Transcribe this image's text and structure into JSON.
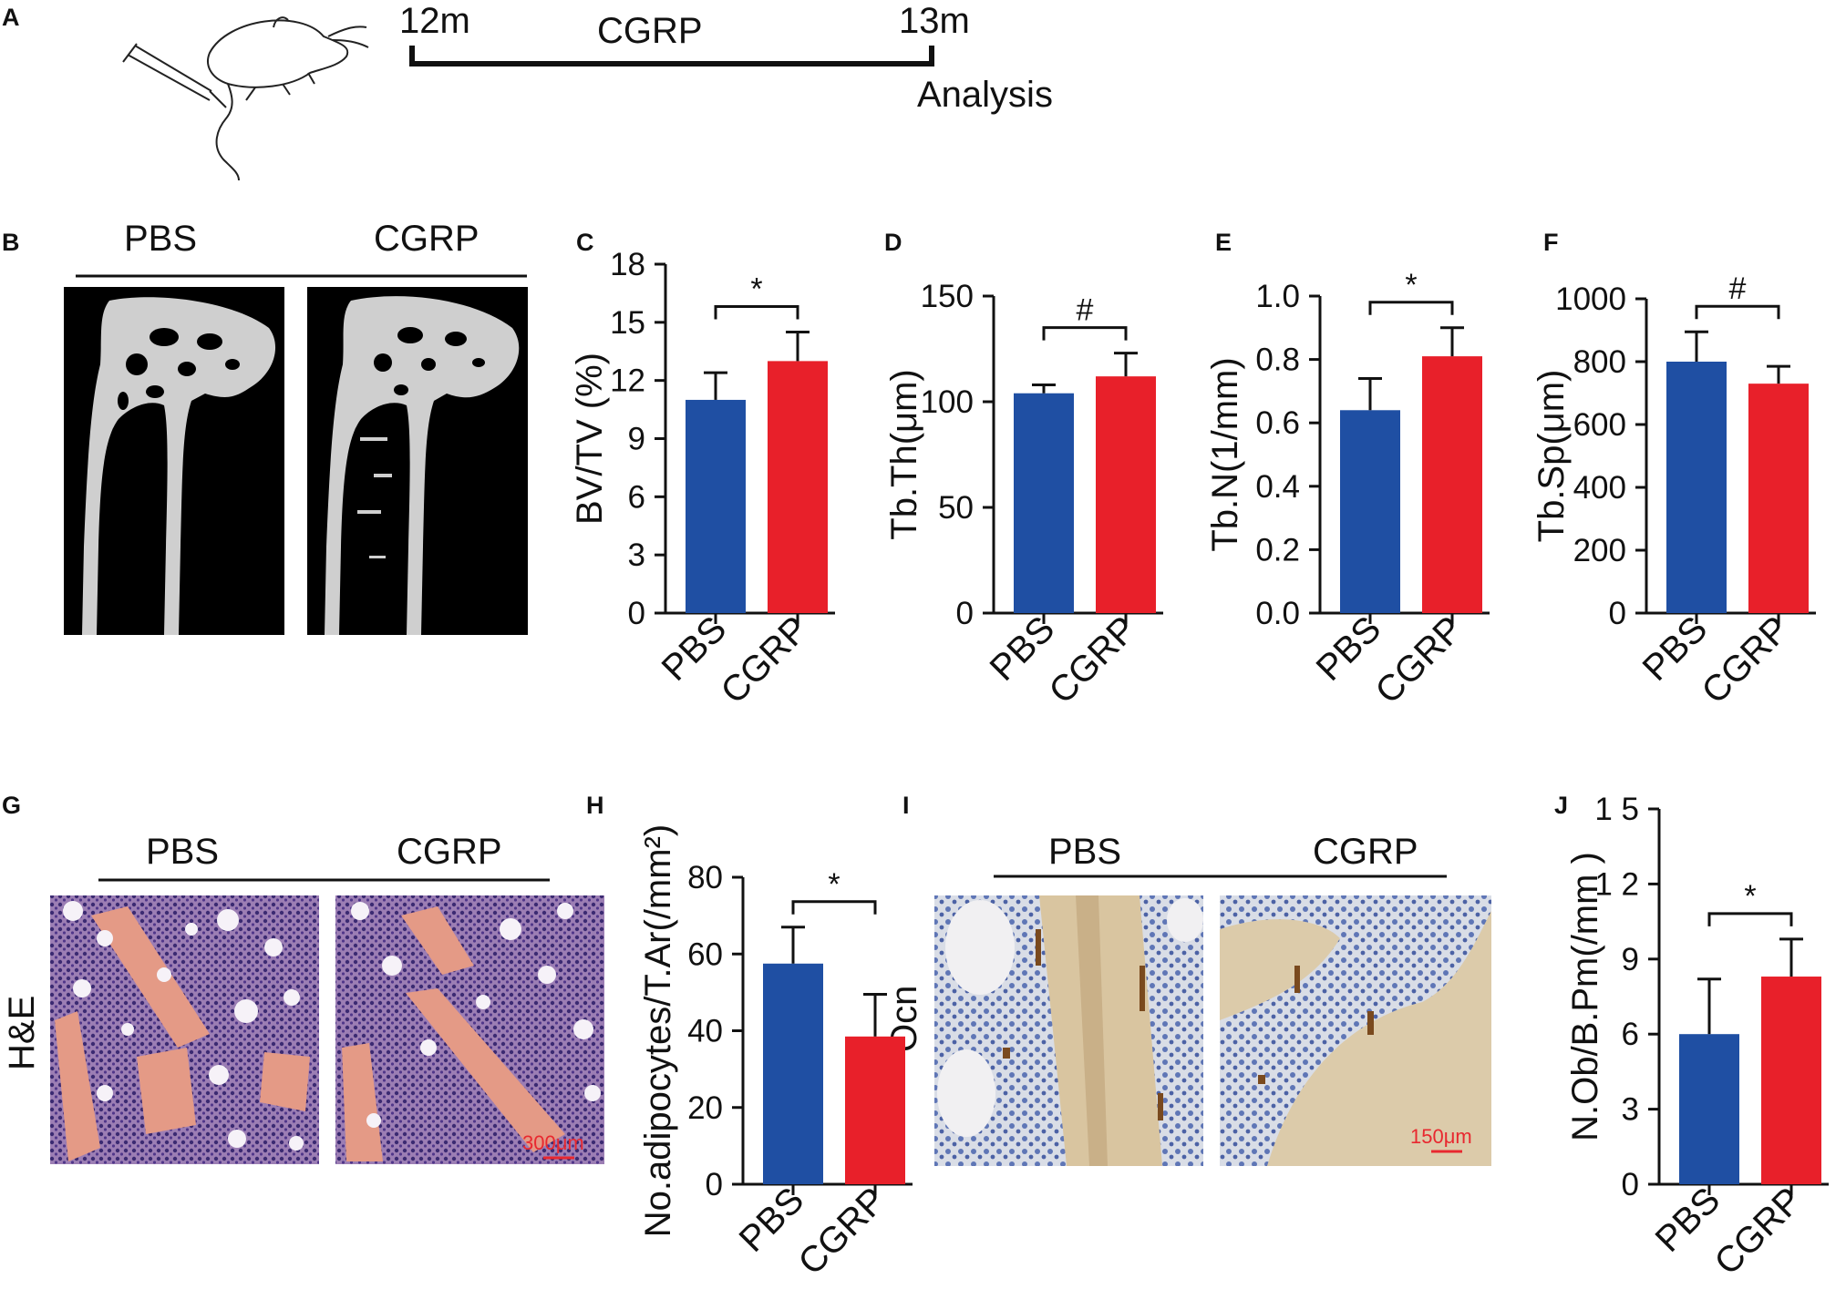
{
  "panel_labels": {
    "A": "A",
    "B": "B",
    "G": "G",
    "I": "I"
  },
  "timeline": {
    "start_label": "12m",
    "treatment_label": "CGRP",
    "end_label": "13m",
    "endpoint_label": "Analysis"
  },
  "panel_b": {
    "group1": "PBS",
    "group2": "CGRP"
  },
  "panel_g": {
    "group1": "PBS",
    "group2": "CGRP",
    "stain": "H&E",
    "scale_bar": "300μm"
  },
  "panel_i": {
    "group1": "PBS",
    "group2": "CGRP",
    "stain": "Ocn",
    "scale_bar": "150μm"
  },
  "colors": {
    "pbs": "#1f4fa3",
    "cgrp": "#e8202a",
    "axis": "#111111",
    "scale_bar": "#e8282f"
  },
  "chart_data": [
    {
      "panel": "C",
      "type": "bar",
      "categories": [
        "PBS",
        "CGRP"
      ],
      "values": [
        11.0,
        13.0
      ],
      "errors": [
        1.4,
        1.5
      ],
      "ylabel": "BV/TV (%)",
      "ylim": [
        0,
        18
      ],
      "yticks": [
        0,
        3,
        6,
        9,
        12,
        15,
        18
      ],
      "ytick_labels": [
        "0",
        "3",
        "6",
        "9",
        "12",
        "15",
        "18"
      ],
      "significance": "*"
    },
    {
      "panel": "D",
      "type": "bar",
      "categories": [
        "PBS",
        "CGRP"
      ],
      "values": [
        104,
        112
      ],
      "errors": [
        4,
        11
      ],
      "ylabel": "Tb.Th(μm)",
      "ylim": [
        0,
        150
      ],
      "yticks": [
        0,
        50,
        100,
        150
      ],
      "ytick_labels": [
        "0",
        "50",
        "100",
        "150"
      ],
      "significance": "#"
    },
    {
      "panel": "E",
      "type": "bar",
      "categories": [
        "PBS",
        "CGRP"
      ],
      "values": [
        0.64,
        0.81
      ],
      "errors": [
        0.1,
        0.09
      ],
      "ylabel": "Tb.N(1/mm)",
      "ylim": [
        0,
        1.0
      ],
      "yticks": [
        0,
        0.2,
        0.4,
        0.6,
        0.8,
        1.0
      ],
      "ytick_labels": [
        "0.0",
        "0.2",
        "0.4",
        "0.6",
        "0.8",
        "1.0"
      ],
      "significance": "*"
    },
    {
      "panel": "F",
      "type": "bar",
      "categories": [
        "PBS",
        "CGRP"
      ],
      "values": [
        800,
        730
      ],
      "errors": [
        95,
        55
      ],
      "ylabel": "Tb.Sp(μm)",
      "ylim": [
        0,
        1000
      ],
      "yticks": [
        0,
        200,
        400,
        600,
        800,
        1000
      ],
      "ytick_labels": [
        "0",
        "200",
        "400",
        "600",
        "800",
        "1000"
      ],
      "significance": "#"
    },
    {
      "panel": "H",
      "type": "bar",
      "categories": [
        "PBS",
        "CGRP"
      ],
      "values": [
        57.5,
        38.5
      ],
      "errors": [
        9.5,
        11
      ],
      "ylabel": "No.adipocytes/T.Ar(/mm²)",
      "ylim": [
        0,
        80
      ],
      "yticks": [
        0,
        20,
        40,
        60,
        80
      ],
      "ytick_labels": [
        "0",
        "20",
        "40",
        "60",
        "80"
      ],
      "significance": "*"
    },
    {
      "panel": "J",
      "type": "bar",
      "categories": [
        "PBS",
        "CGRP"
      ],
      "values": [
        6.0,
        8.3
      ],
      "errors": [
        2.2,
        1.5
      ],
      "ylabel": "N.Ob/B.Pm(/mm )",
      "ylim": [
        0,
        15
      ],
      "yticks": [
        0,
        3,
        6,
        9,
        12,
        15
      ],
      "ytick_labels": [
        "0",
        "3",
        "6",
        "9",
        "1 2",
        "1 5"
      ],
      "significance": "*"
    }
  ]
}
